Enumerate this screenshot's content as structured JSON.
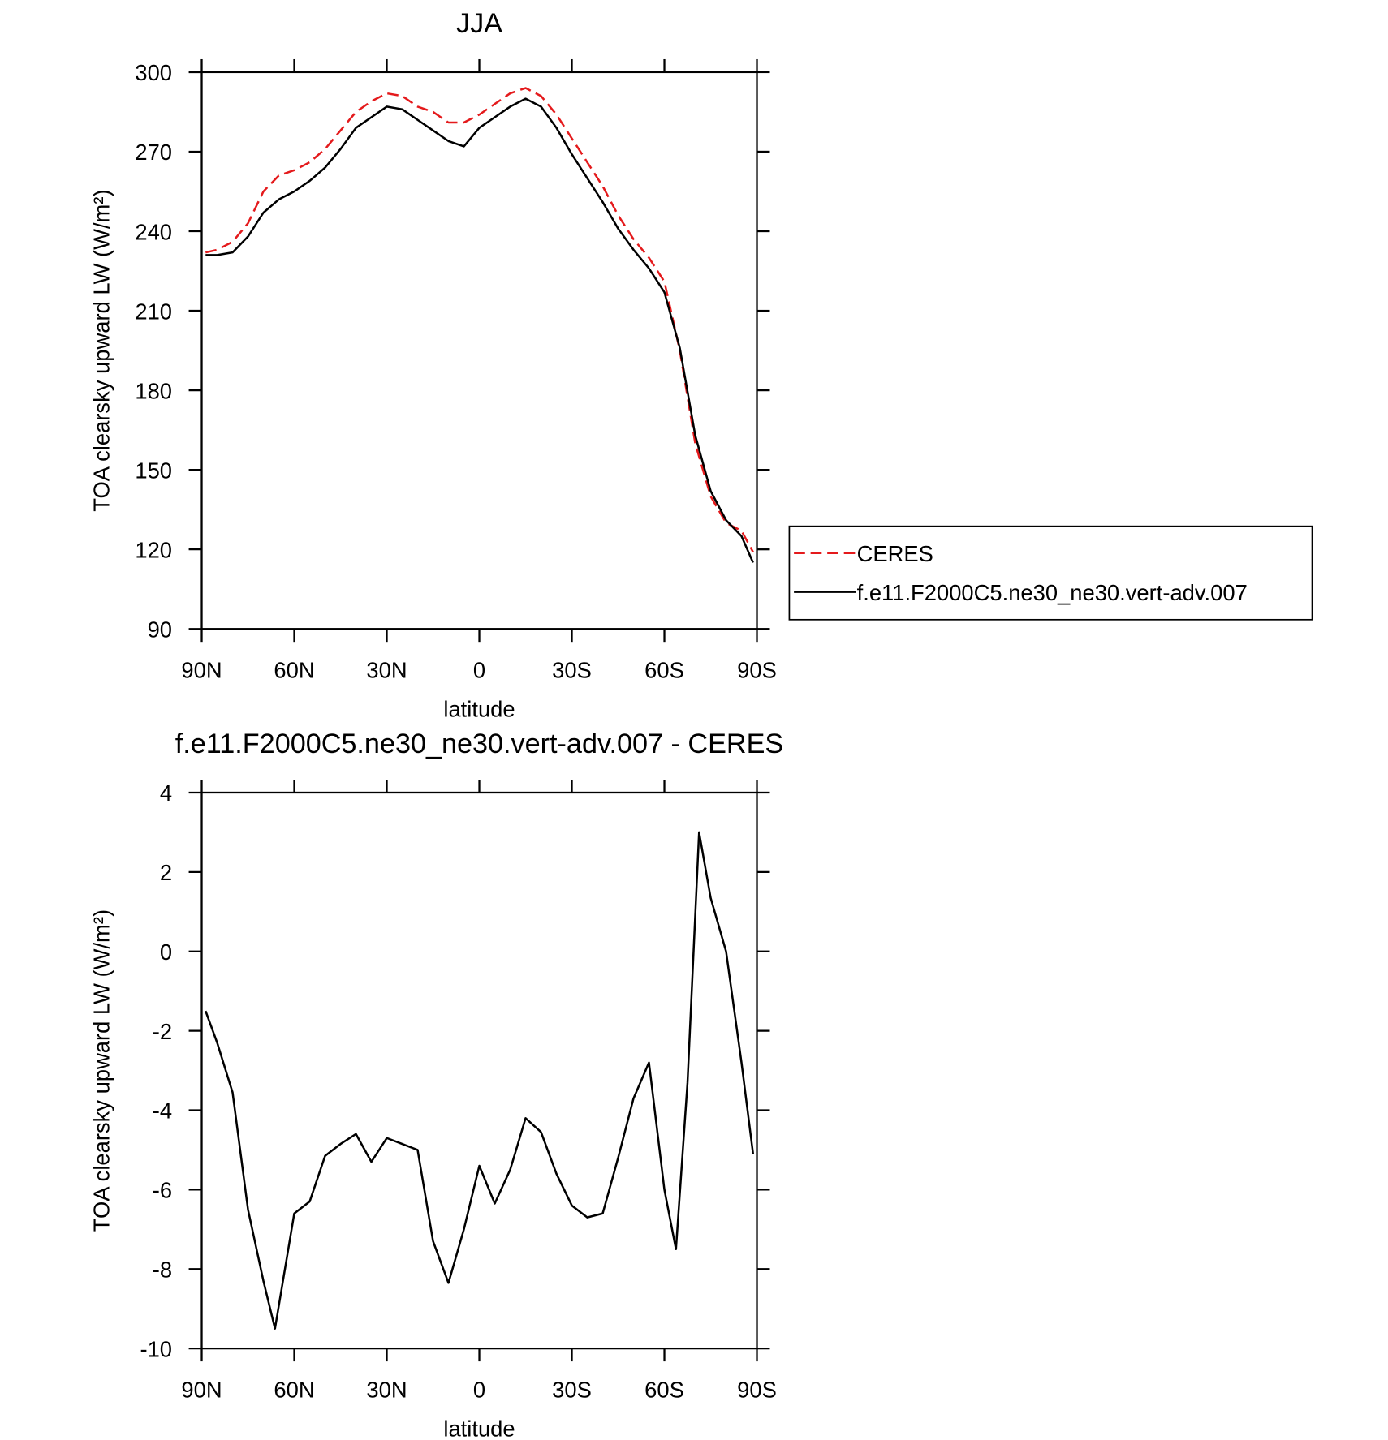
{
  "chart_data": [
    {
      "type": "line",
      "title": "JJA",
      "xlabel": "latitude",
      "ylabel": "TOA clearsky upward LW (W/m²)",
      "x": [
        88.75,
        85,
        80,
        75,
        70,
        65,
        60,
        55,
        50,
        45,
        40,
        35,
        30,
        25,
        20,
        15,
        10,
        5,
        0,
        -5,
        -10,
        -15,
        -20,
        -25,
        -30,
        -35,
        -40,
        -45,
        -50,
        -55,
        -60,
        -65,
        -70,
        -75,
        -80,
        -85,
        -88.75
      ],
      "series": [
        {
          "name": "CERES",
          "color": "#e41a1c",
          "dashed": true,
          "values": [
            232,
            233,
            236,
            243,
            255,
            261,
            263,
            266,
            271,
            278,
            285,
            289,
            292,
            291,
            287,
            285,
            281,
            281,
            284,
            288,
            292,
            294,
            291,
            284,
            275,
            266,
            257,
            246,
            237,
            230,
            221,
            195,
            160,
            140,
            130,
            127,
            119
          ]
        },
        {
          "name": "f.e11.F2000C5.ne30_ne30.vert-adv.007",
          "color": "#000000",
          "dashed": false,
          "values": [
            231,
            231,
            232,
            238,
            247,
            252,
            255,
            259,
            264,
            271,
            279,
            283,
            287,
            286,
            282,
            278,
            274,
            272,
            279,
            283,
            287,
            290,
            287,
            279,
            269,
            260,
            251,
            241,
            233,
            226,
            217,
            196,
            163,
            142,
            131,
            125,
            115
          ]
        }
      ],
      "xlim": [
        90,
        -90
      ],
      "xticks": [
        {
          "value": 90,
          "label": "90N"
        },
        {
          "value": 60,
          "label": "60N"
        },
        {
          "value": 30,
          "label": "30N"
        },
        0,
        {
          "value": -30,
          "label": "30S"
        },
        {
          "value": -60,
          "label": "60S"
        },
        {
          "value": -90,
          "label": "90S"
        }
      ],
      "ylim": [
        90,
        300
      ],
      "yticks": [
        90,
        120,
        150,
        180,
        210,
        240,
        270,
        300
      ],
      "legend": "right"
    },
    {
      "type": "line",
      "title": "f.e11.F2000C5.ne30_ne30.vert-adv.007 - CERES",
      "xlabel": "latitude",
      "ylabel": "TOA clearsky upward LW (W/m²)",
      "x": [
        88.75,
        85,
        80,
        75,
        70,
        66.25,
        60,
        55,
        50,
        45,
        40,
        35,
        30,
        25,
        20,
        15,
        10,
        5,
        0,
        -5,
        -10,
        -15,
        -20,
        -25,
        -30,
        -35,
        -40,
        -45,
        -50,
        -55,
        -60,
        -63.75,
        -67.5,
        -71.25,
        -75,
        -80,
        -85,
        -88.75
      ],
      "series": [
        {
          "color": "#000000",
          "dashed": false,
          "values": [
            -1.5,
            -2.3,
            -3.55,
            -6.5,
            -8.3,
            -9.5,
            -6.6,
            -6.3,
            -5.15,
            -4.85,
            -4.6,
            -5.3,
            -4.7,
            -4.85,
            -5.0,
            -7.3,
            -8.35,
            -7.0,
            -5.4,
            -6.35,
            -5.5,
            -4.2,
            -4.55,
            -5.6,
            -6.4,
            -6.7,
            -6.6,
            -5.2,
            -3.7,
            -2.8,
            -6.0,
            -7.5,
            -3.3,
            3.0,
            1.35,
            0.0,
            -2.8,
            -5.1
          ]
        }
      ],
      "xlim": [
        90,
        -90
      ],
      "xticks": [
        {
          "value": 90,
          "label": "90N"
        },
        {
          "value": 60,
          "label": "60N"
        },
        {
          "value": 30,
          "label": "30N"
        },
        0,
        {
          "value": -30,
          "label": "30S"
        },
        {
          "value": -60,
          "label": "60S"
        },
        {
          "value": -90,
          "label": "90S"
        }
      ],
      "ylim": [
        -10,
        4
      ],
      "yticks": [
        -10,
        -8,
        -6,
        -4,
        -2,
        0,
        2,
        4
      ]
    }
  ]
}
